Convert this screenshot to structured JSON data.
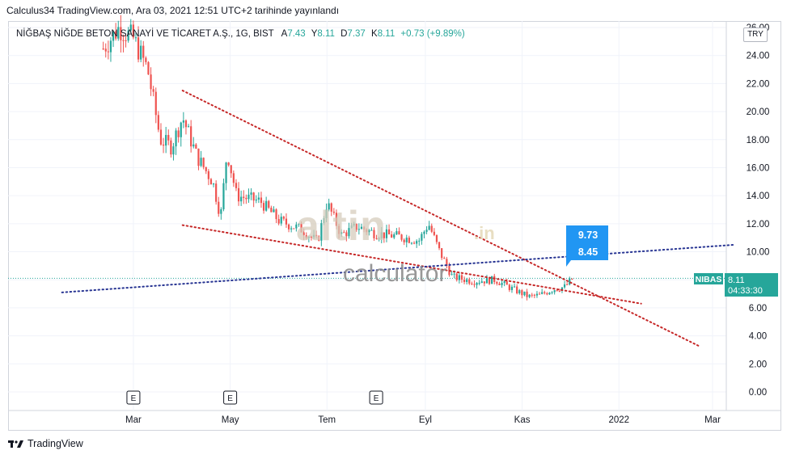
{
  "header": {
    "publish_line": "Calculus34 TradingView.com, Ara 03, 2021 12:51 UTC+2 tarihinde yayınlandı"
  },
  "symbol": {
    "name": "NİĞBAŞ NİĞDE BETON SANAYİ VE TİCARET A.Ş., 1G, BIST",
    "open_label": "A",
    "open_value": "7.43",
    "high_label": "Y",
    "high_value": "8.11",
    "low_label": "D",
    "low_value": "7.37",
    "close_label": "K",
    "close_value": "8.11",
    "change": "+0.73 (+9.89%)",
    "currency": "TRY"
  },
  "price_tag": {
    "ticker": "NIBAS",
    "price": "8.11",
    "countdown": "04:33:30"
  },
  "callout": {
    "upper": "9.73",
    "lower": "8.45"
  },
  "watermark": {
    "brand": "altin",
    "tld": ".in",
    "sub": "calculator"
  },
  "footer": {
    "brand": "TradingView"
  },
  "colors": {
    "up": "#26a69a",
    "down": "#ef5350",
    "trend_red": "#c62828",
    "trend_blue": "#283593",
    "callout": "#2196f3"
  },
  "chart_data": {
    "type": "candlestick",
    "y_axis": {
      "min": 0,
      "max": 26,
      "ticks": [
        "26.00",
        "24.00",
        "22.00",
        "20.00",
        "18.00",
        "16.00",
        "14.00",
        "12.00",
        "10.00",
        "8.00",
        "6.00",
        "4.00",
        "2.00",
        "0.00"
      ]
    },
    "x_axis": {
      "ticks": [
        "Mar",
        "May",
        "Tem",
        "Eyl",
        "Kas",
        "2022",
        "Mar"
      ]
    },
    "earnings_markers": [
      "E",
      "E",
      "E"
    ],
    "close_path": [
      {
        "x": "2021-02-10",
        "close": 24.5
      },
      {
        "x": "2021-02-20",
        "close": 26.0
      },
      {
        "x": "2021-03-01",
        "close": 25.2
      },
      {
        "x": "2021-03-10",
        "close": 23.0
      },
      {
        "x": "2021-03-18",
        "close": 18.0
      },
      {
        "x": "2021-03-25",
        "close": 17.5
      },
      {
        "x": "2021-04-01",
        "close": 19.6
      },
      {
        "x": "2021-04-10",
        "close": 16.8
      },
      {
        "x": "2021-04-20",
        "close": 15.0
      },
      {
        "x": "2021-04-25",
        "close": 12.5
      },
      {
        "x": "2021-04-29",
        "close": 17.2
      },
      {
        "x": "2021-05-05",
        "close": 14.0
      },
      {
        "x": "2021-05-20",
        "close": 13.6
      },
      {
        "x": "2021-06-01",
        "close": 12.2
      },
      {
        "x": "2021-06-15",
        "close": 11.6
      },
      {
        "x": "2021-06-25",
        "close": 10.7
      },
      {
        "x": "2021-07-01",
        "close": 13.5
      },
      {
        "x": "2021-07-10",
        "close": 11.2
      },
      {
        "x": "2021-07-20",
        "close": 11.8
      },
      {
        "x": "2021-08-01",
        "close": 11.3
      },
      {
        "x": "2021-08-15",
        "close": 11.1
      },
      {
        "x": "2021-08-28",
        "close": 10.8
      },
      {
        "x": "2021-09-03",
        "close": 12.0
      },
      {
        "x": "2021-09-10",
        "close": 10.0
      },
      {
        "x": "2021-09-18",
        "close": 8.2
      },
      {
        "x": "2021-10-01",
        "close": 7.9
      },
      {
        "x": "2021-10-15",
        "close": 8.0
      },
      {
        "x": "2021-10-25",
        "close": 7.4
      },
      {
        "x": "2021-11-05",
        "close": 6.8
      },
      {
        "x": "2021-11-12",
        "close": 6.9
      },
      {
        "x": "2021-11-20",
        "close": 7.3
      },
      {
        "x": "2021-11-28",
        "close": 7.5
      },
      {
        "x": "2021-12-03",
        "close": 8.11
      }
    ],
    "trendlines": [
      {
        "style": "dotted",
        "color": "red",
        "from": {
          "x": "2021-04-01",
          "y": 21.5
        },
        "to": {
          "x": "2022-02-20",
          "y": 3.3
        }
      },
      {
        "style": "dotted",
        "color": "red",
        "from": {
          "x": "2021-04-01",
          "y": 11.9
        },
        "to": {
          "x": "2022-01-15",
          "y": 6.3
        }
      },
      {
        "style": "dotted",
        "color": "blue",
        "from": {
          "x": "2021-01-15",
          "y": 7.1
        },
        "to": {
          "x": "2022-03-15",
          "y": 10.5
        }
      }
    ]
  }
}
